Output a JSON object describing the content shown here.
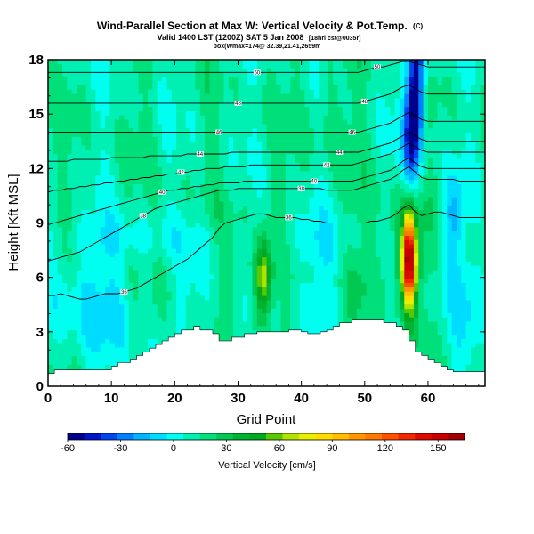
{
  "chart_data": {
    "type": "heatmap",
    "title": "Wind-Parallel Section at Max W: Vertical Velocity & Pot.Temp.",
    "title_mark": "(C)",
    "subtitle": "Valid 1400 LST (1200Z) SAT 5 Jan 2008",
    "subtitle_note": "[18hrl cst@0035r]",
    "subtitle2": "box(Wmax=174@ 32.39,21.41,2659m",
    "xlabel": "Grid Point",
    "ylabel": "Height [Kft MSL]",
    "xlim": [
      0,
      69
    ],
    "ylim": [
      0,
      18
    ],
    "xticks": [
      0,
      10,
      20,
      30,
      40,
      50,
      60
    ],
    "yticks": [
      0,
      3,
      6,
      9,
      12,
      15,
      18
    ],
    "colorbar": {
      "label": "Vertical Velocity [cm/s]",
      "ticks": [
        -60,
        -30,
        0,
        30,
        60,
        90,
        120,
        150
      ],
      "range": [
        -60,
        165
      ],
      "colors": [
        "#00008c",
        "#0014c8",
        "#0046f0",
        "#0080ff",
        "#00b4ff",
        "#00dcff",
        "#00fff0",
        "#00f0b4",
        "#00e07a",
        "#00c850",
        "#00b432",
        "#00aa20",
        "#5ac800",
        "#b4e100",
        "#e6f000",
        "#ffdc00",
        "#ffbe00",
        "#ff9600",
        "#ff7800",
        "#ff5000",
        "#f02800",
        "#dc0a00",
        "#c80000",
        "#a00000"
      ]
    },
    "features": [
      {
        "name": "updraft core",
        "x": 57,
        "height": 7,
        "max": 150
      },
      {
        "name": "downdraft band",
        "x": 57.5,
        "height": 15,
        "min": -60
      },
      {
        "name": "secondary updraft",
        "x": 34,
        "height": 6,
        "max": 70
      }
    ],
    "terrain": {
      "x": [
        0,
        1,
        2,
        3,
        4,
        5,
        6,
        7,
        8,
        9,
        10,
        11,
        12,
        13,
        14,
        15,
        16,
        17,
        18,
        19,
        20,
        21,
        22,
        23,
        24,
        25,
        26,
        27,
        28,
        29,
        30,
        31,
        32,
        33,
        34,
        35,
        36,
        37,
        38,
        39,
        40,
        41,
        42,
        43,
        44,
        45,
        46,
        47,
        48,
        49,
        50,
        51,
        52,
        53,
        54,
        55,
        56,
        57,
        58,
        59,
        60,
        61,
        62,
        63,
        64,
        65,
        66,
        67,
        68,
        69
      ],
      "height": [
        0.7,
        0.9,
        0.9,
        0.9,
        0.9,
        0.9,
        0.9,
        0.9,
        0.9,
        0.9,
        1.1,
        1.3,
        1.3,
        1.5,
        1.7,
        1.9,
        2.1,
        2.3,
        2.5,
        2.7,
        2.9,
        3.1,
        3.1,
        3.3,
        3.1,
        3.1,
        2.9,
        2.5,
        2.5,
        2.7,
        2.7,
        2.9,
        2.9,
        3.0,
        3.0,
        3.0,
        3.0,
        3.0,
        3.1,
        3.1,
        3.0,
        2.9,
        2.9,
        3.0,
        3.1,
        3.3,
        3.5,
        3.5,
        3.7,
        3.7,
        3.7,
        3.7,
        3.7,
        3.5,
        3.5,
        3.3,
        3.1,
        2.5,
        1.9,
        1.7,
        1.5,
        1.3,
        1.1,
        0.9,
        0.8,
        0.8,
        0.8,
        0.8,
        0.8,
        0.8
      ]
    },
    "isentropes": [
      {
        "label": "36",
        "y": [
          5.0,
          5.0,
          5.1,
          5.0,
          4.9,
          4.8,
          4.8,
          4.9,
          5.0,
          5.1,
          5.1,
          5.1,
          5.2,
          5.3,
          5.4,
          5.6,
          5.8,
          6.0,
          6.2,
          6.4,
          6.6,
          6.8,
          7.0,
          7.3,
          7.6,
          7.9,
          8.2,
          8.7,
          9.0,
          9.1,
          9.2,
          9.3,
          9.4,
          9.5,
          9.5,
          9.4,
          9.3,
          9.3,
          9.3,
          9.3,
          9.2,
          9.2,
          9.1,
          9.1,
          9.0,
          9.0,
          9.0,
          9.0,
          9.0,
          9.0,
          9.0,
          9.1,
          9.1,
          9.2,
          9.3,
          9.5,
          9.8,
          10.0,
          9.6,
          9.4,
          9.5,
          9.6,
          9.6,
          9.5,
          9.4,
          9.3,
          9.3,
          9.3,
          9.3,
          9.3
        ]
      },
      {
        "label": "38",
        "y": [
          6.9,
          7.0,
          7.1,
          7.2,
          7.3,
          7.4,
          7.6,
          7.8,
          8.0,
          8.2,
          8.4,
          8.6,
          8.8,
          9.0,
          9.2,
          9.4,
          9.6,
          9.8,
          9.9,
          10.0,
          10.1,
          10.2,
          10.3,
          10.4,
          10.5,
          10.6,
          10.7,
          10.8,
          10.8,
          10.8,
          10.9,
          10.9,
          10.9,
          10.9,
          10.9,
          10.9,
          10.9,
          10.9,
          10.9,
          10.9,
          10.9,
          10.9,
          10.9,
          10.9,
          10.8,
          10.8,
          10.8,
          10.8,
          10.8,
          10.9,
          11.0,
          11.1,
          11.2,
          11.3,
          11.4,
          11.6,
          11.9,
          12.1,
          11.8,
          11.5,
          11.4,
          11.4,
          11.4,
          11.4,
          11.4,
          11.3,
          11.3,
          11.3,
          11.3,
          11.3
        ]
      },
      {
        "label": "40",
        "y": [
          8.9,
          9.0,
          9.1,
          9.2,
          9.3,
          9.4,
          9.5,
          9.6,
          9.7,
          9.8,
          9.9,
          10.0,
          10.1,
          10.2,
          10.3,
          10.4,
          10.5,
          10.6,
          10.7,
          10.8,
          10.8,
          10.9,
          10.9,
          11.0,
          11.0,
          11.1,
          11.1,
          11.2,
          11.2,
          11.2,
          11.2,
          11.3,
          11.3,
          11.3,
          11.3,
          11.3,
          11.3,
          11.3,
          11.3,
          11.3,
          11.3,
          11.3,
          11.3,
          11.3,
          11.3,
          11.3,
          11.3,
          11.3,
          11.3,
          11.4,
          11.5,
          11.6,
          11.7,
          11.8,
          11.9,
          12.1,
          12.4,
          12.6,
          12.3,
          12.1,
          12.0,
          12.0,
          12.0,
          12.0,
          12.0,
          12.0,
          12.0,
          12.0,
          12.0,
          12.0
        ]
      },
      {
        "label": "42",
        "y": [
          10.7,
          10.8,
          10.8,
          10.9,
          10.9,
          11.0,
          11.0,
          11.1,
          11.1,
          11.2,
          11.2,
          11.3,
          11.3,
          11.4,
          11.4,
          11.5,
          11.5,
          11.6,
          11.6,
          11.7,
          11.7,
          11.8,
          11.8,
          11.9,
          11.9,
          12.0,
          12.0,
          12.0,
          12.1,
          12.1,
          12.1,
          12.1,
          12.2,
          12.2,
          12.2,
          12.2,
          12.2,
          12.2,
          12.2,
          12.2,
          12.2,
          12.2,
          12.2,
          12.2,
          12.2,
          12.2,
          12.2,
          12.2,
          12.2,
          12.3,
          12.4,
          12.5,
          12.6,
          12.7,
          12.8,
          13.0,
          13.2,
          13.4,
          13.2,
          13.0,
          12.9,
          12.9,
          12.9,
          12.9,
          12.9,
          12.9,
          12.9,
          12.9,
          12.9,
          12.9
        ]
      },
      {
        "label": "44",
        "y": [
          12.4,
          12.4,
          12.4,
          12.4,
          12.5,
          12.5,
          12.5,
          12.5,
          12.5,
          12.5,
          12.6,
          12.6,
          12.6,
          12.6,
          12.6,
          12.6,
          12.7,
          12.7,
          12.7,
          12.7,
          12.7,
          12.7,
          12.8,
          12.8,
          12.8,
          12.8,
          12.8,
          12.8,
          12.8,
          12.9,
          12.9,
          12.9,
          12.9,
          12.9,
          12.9,
          12.9,
          12.9,
          12.9,
          12.9,
          12.9,
          12.9,
          12.9,
          12.9,
          12.9,
          12.9,
          12.9,
          12.9,
          12.9,
          12.9,
          12.9,
          13.0,
          13.1,
          13.2,
          13.3,
          13.4,
          13.6,
          13.8,
          14.0,
          13.8,
          13.6,
          13.5,
          13.5,
          13.5,
          13.5,
          13.5,
          13.5,
          13.5,
          13.5,
          13.5,
          13.5
        ]
      },
      {
        "label": "46",
        "y": [
          14.0,
          14.0,
          14.0,
          14.0,
          14.0,
          14.0,
          14.0,
          14.0,
          14.0,
          14.0,
          14.0,
          14.0,
          14.0,
          14.0,
          14.0,
          14.0,
          14.0,
          14.0,
          14.0,
          14.0,
          14.0,
          14.0,
          14.0,
          14.0,
          14.0,
          14.0,
          14.0,
          14.0,
          14.0,
          14.0,
          14.0,
          14.0,
          14.0,
          14.0,
          14.0,
          14.0,
          14.0,
          14.0,
          14.0,
          14.0,
          14.0,
          14.0,
          14.0,
          14.0,
          14.0,
          14.0,
          14.0,
          14.0,
          14.0,
          14.0,
          14.1,
          14.2,
          14.3,
          14.4,
          14.5,
          14.7,
          14.9,
          15.1,
          14.9,
          14.7,
          14.6,
          14.6,
          14.6,
          14.6,
          14.6,
          14.6,
          14.6,
          14.6,
          14.6,
          14.6
        ]
      },
      {
        "label": "48",
        "y": [
          15.6,
          15.6,
          15.6,
          15.6,
          15.6,
          15.6,
          15.6,
          15.6,
          15.6,
          15.6,
          15.6,
          15.6,
          15.6,
          15.6,
          15.6,
          15.6,
          15.6,
          15.6,
          15.6,
          15.6,
          15.6,
          15.6,
          15.6,
          15.6,
          15.6,
          15.6,
          15.6,
          15.6,
          15.6,
          15.6,
          15.6,
          15.6,
          15.6,
          15.6,
          15.6,
          15.6,
          15.6,
          15.6,
          15.6,
          15.6,
          15.6,
          15.6,
          15.6,
          15.6,
          15.6,
          15.6,
          15.6,
          15.6,
          15.6,
          15.6,
          15.7,
          15.8,
          15.9,
          16.0,
          16.1,
          16.3,
          16.5,
          16.6,
          16.4,
          16.2,
          16.1,
          16.1,
          16.1,
          16.1,
          16.1,
          16.1,
          16.1,
          16.1,
          16.1,
          16.1
        ]
      },
      {
        "label": "50",
        "y": [
          17.3,
          17.3,
          17.3,
          17.3,
          17.3,
          17.3,
          17.3,
          17.3,
          17.3,
          17.3,
          17.3,
          17.3,
          17.3,
          17.3,
          17.3,
          17.3,
          17.3,
          17.3,
          17.3,
          17.3,
          17.3,
          17.3,
          17.3,
          17.3,
          17.3,
          17.3,
          17.3,
          17.3,
          17.3,
          17.3,
          17.3,
          17.3,
          17.3,
          17.3,
          17.3,
          17.3,
          17.3,
          17.3,
          17.3,
          17.3,
          17.3,
          17.3,
          17.3,
          17.3,
          17.3,
          17.3,
          17.3,
          17.3,
          17.3,
          17.3,
          17.4,
          17.5,
          17.6,
          17.6,
          17.7,
          17.8,
          17.9,
          17.9,
          17.8,
          17.7,
          17.6,
          17.6,
          17.6,
          17.6,
          17.6,
          17.6,
          17.6,
          17.6,
          17.6,
          17.6
        ]
      }
    ]
  }
}
